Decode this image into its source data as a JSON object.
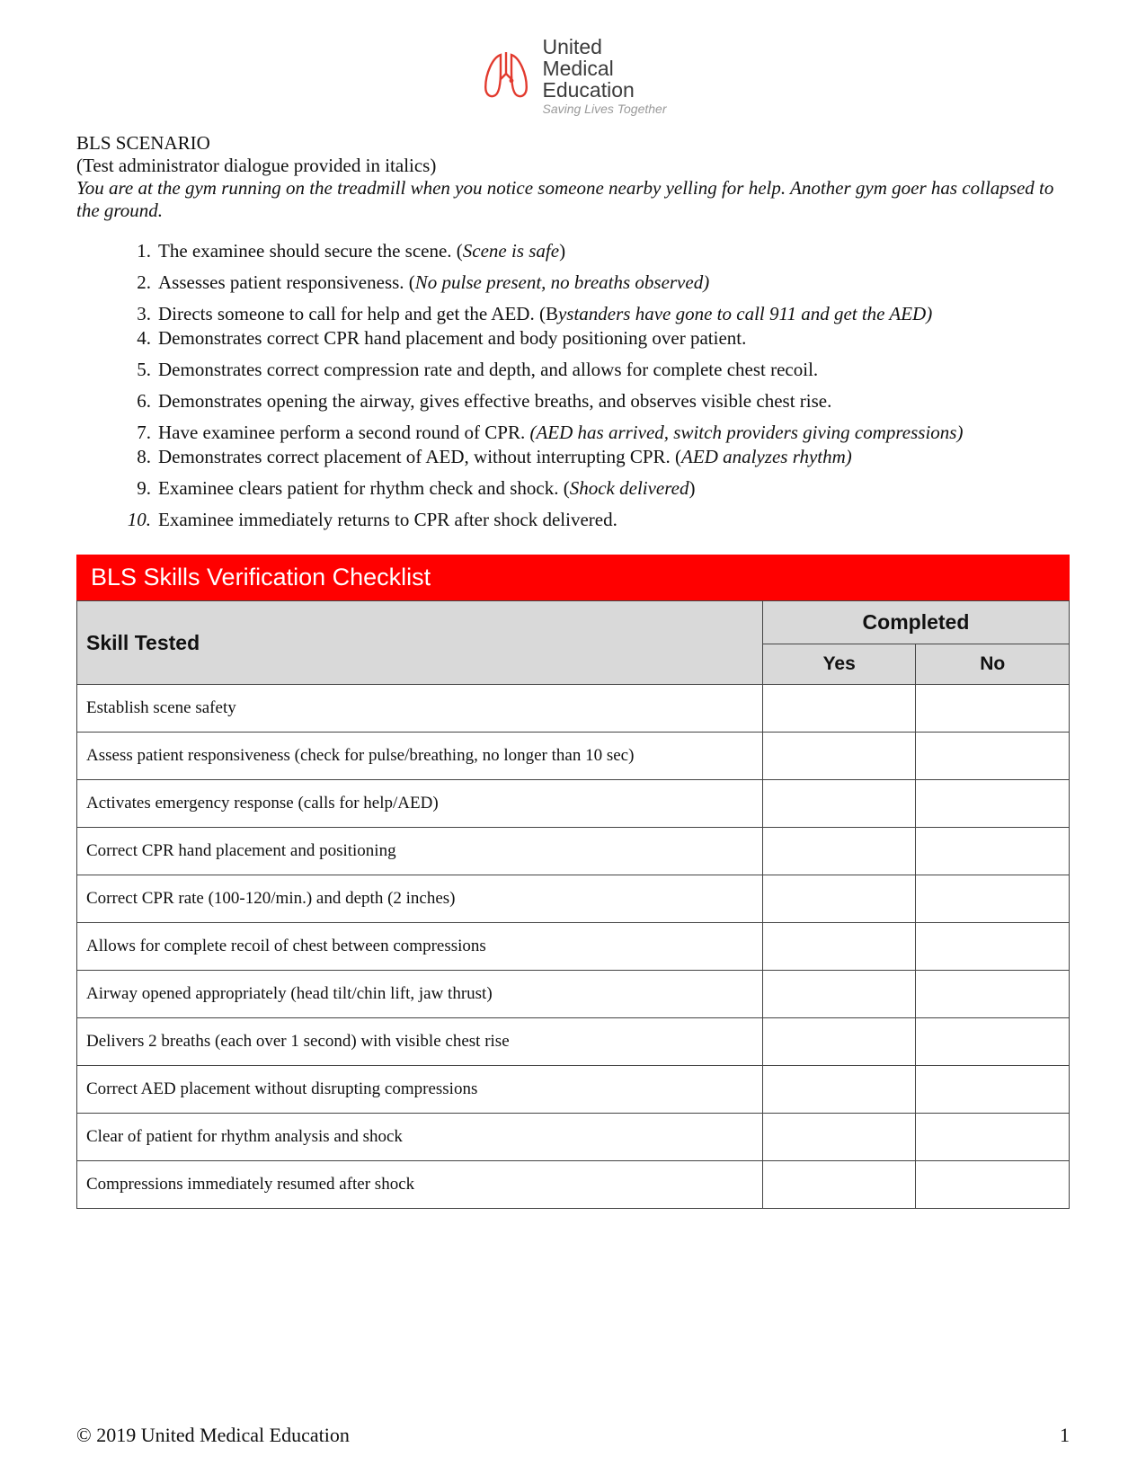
{
  "logo": {
    "line1": "United",
    "line2": "Medical",
    "line3": "Education",
    "tagline": "Saving Lives Together",
    "stroke_color": "#e23a2e",
    "accent_color": "#e23a2e"
  },
  "scenario": {
    "title": "BLS SCENARIO",
    "subtitle": "(Test administrator dialogue provided in italics)",
    "body": "You are at the gym running on the treadmill when you notice someone nearby yelling for help. Another gym goer has collapsed to the ground."
  },
  "steps": [
    {
      "n": "1.",
      "pre": "The examinee should secure the scene. (",
      "it": "Scene is safe",
      "post": ")"
    },
    {
      "n": "2.",
      "pre": "Assesses patient responsiveness. (",
      "it": "No pulse present, no breaths observed)",
      "post": ""
    },
    {
      "n": "3.",
      "pre": "Directs someone to call for help and get the AED. (B",
      "it": "ystanders have gone to call 911 and get the AED)",
      "post": ""
    },
    {
      "n": "4.",
      "pre": "Demonstrates correct CPR hand placement and body positioning over patient.",
      "it": "",
      "post": ""
    },
    {
      "n": "5.",
      "pre": "Demonstrates correct compression rate and depth, and allows for complete chest recoil.",
      "it": "",
      "post": ""
    },
    {
      "n": "6.",
      "pre": "Demonstrates opening the airway, gives effective breaths, and observes visible chest rise.",
      "it": "",
      "post": ""
    },
    {
      "n": "7.",
      "pre": "Have examinee perform a second round of CPR.  ",
      "it": "(AED has arrived, switch providers giving compressions)",
      "post": ""
    },
    {
      "n": "8.",
      "pre": "Demonstrates correct placement of AED, without interrupting CPR. (",
      "it": "AED analyzes rhythm)",
      "post": ""
    },
    {
      "n": "9.",
      "pre": " Examinee clears patient for rhythm check and shock.  (",
      "it": "Shock delivered",
      "post": ")"
    },
    {
      "n": "10.",
      "pre": " Examinee immediately returns to CPR after shock delivered.",
      "it": "",
      "post": "",
      "num_italic": true
    }
  ],
  "tight_rows": [
    2,
    6
  ],
  "checklist": {
    "banner": "BLS Skills Verification Checklist",
    "col_skill": "Skill Tested",
    "col_completed": "Completed",
    "col_yes": "Yes",
    "col_no": "No",
    "rows": [
      "Establish scene safety",
      "Assess patient responsiveness (check for pulse/breathing, no longer than 10 sec)",
      "Activates emergency response (calls for help/AED)",
      "Correct CPR hand placement and positioning",
      "Correct CPR rate (100-120/min.) and depth (2 inches)",
      "Allows for complete recoil of chest between compressions",
      "Airway opened appropriately (head tilt/chin lift, jaw thrust)",
      "Delivers 2 breaths (each over 1 second) with visible chest rise",
      "Correct AED placement without disrupting compressions",
      "Clear of patient for rhythm analysis and shock",
      "Compressions immediately resumed after shock"
    ]
  },
  "footer": {
    "copyright": "© 2019 United Medical Education",
    "page": "1"
  },
  "colors": {
    "banner_bg": "#ff0000",
    "banner_fg": "#ffffff",
    "table_header_bg": "#d9d9d9",
    "border": "#444444",
    "text": "#111111"
  }
}
